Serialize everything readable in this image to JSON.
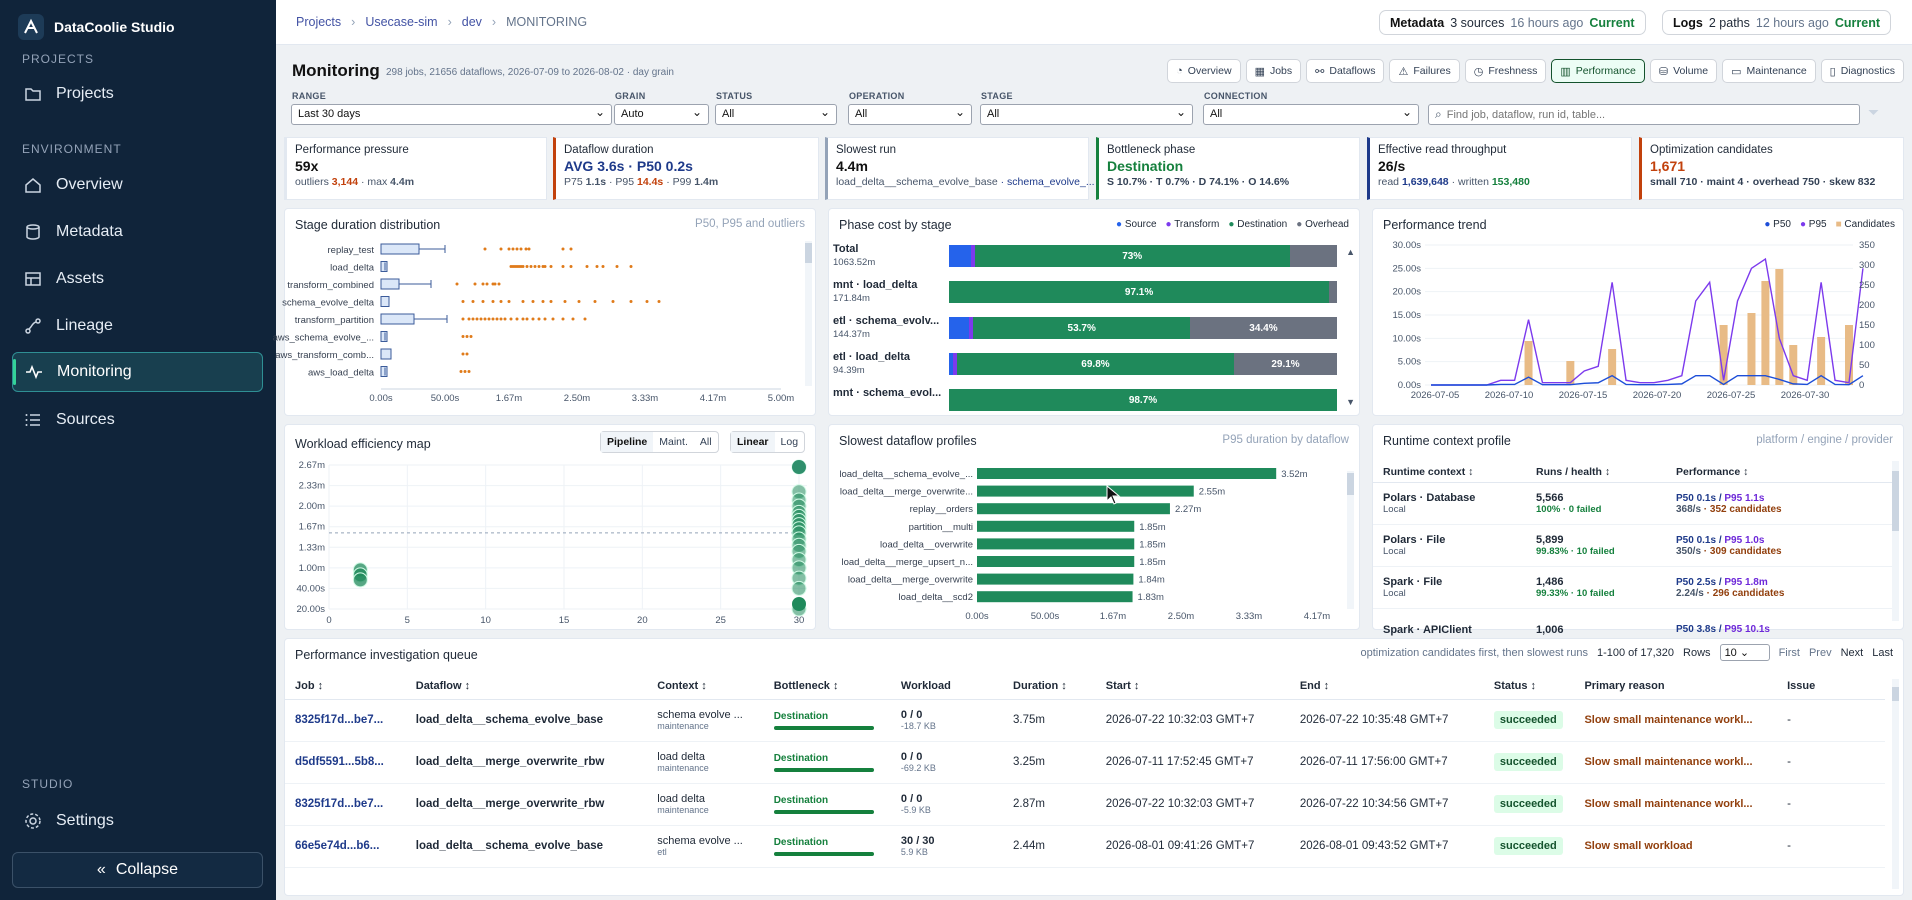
{
  "brand": {
    "name": "DataCoolie Studio"
  },
  "sidebar": {
    "sections": {
      "projects": "PROJECTS",
      "environment": "ENVIRONMENT",
      "studio": "STUDIO"
    },
    "items": [
      {
        "label": "Projects",
        "icon": "folder-icon"
      },
      {
        "label": "Overview",
        "icon": "home-icon"
      },
      {
        "label": "Metadata",
        "icon": "database-icon"
      },
      {
        "label": "Assets",
        "icon": "table-icon"
      },
      {
        "label": "Lineage",
        "icon": "lineage-icon"
      },
      {
        "label": "Monitoring",
        "icon": "pulse-icon"
      },
      {
        "label": "Sources",
        "icon": "list-icon"
      }
    ],
    "settings": "Settings",
    "collapse": "Collapse"
  },
  "breadcrumb": [
    "Projects",
    "Usecase-sim",
    "dev",
    "MONITORING"
  ],
  "status_pills": {
    "metadata": {
      "title": "Metadata",
      "count": "3 sources",
      "age": "16 hours ago",
      "state": "Current"
    },
    "logs": {
      "title": "Logs",
      "count": "2 paths",
      "age": "12 hours ago",
      "state": "Current"
    }
  },
  "page": {
    "title": "Monitoring",
    "meta": "298 jobs, 21656 dataflows, 2026-07-09 to 2026-08-02 · day grain"
  },
  "nav_tabs": [
    "Overview",
    "Jobs",
    "Dataflows",
    "Failures",
    "Freshness",
    "Performance",
    "Volume",
    "Maintenance",
    "Diagnostics"
  ],
  "filters": {
    "range": {
      "label": "RANGE",
      "value": "Last 30 days"
    },
    "grain": {
      "label": "GRAIN",
      "value": "Auto"
    },
    "status": {
      "label": "STATUS",
      "value": "All"
    },
    "operation": {
      "label": "OPERATION",
      "value": "All"
    },
    "stage": {
      "label": "STAGE",
      "value": "All"
    },
    "connection": {
      "label": "CONNECTION",
      "value": "All"
    },
    "search_placeholder": "Find job, dataflow, run id, table..."
  },
  "kpis": [
    {
      "label": "Performance pressure",
      "value": "59x",
      "sub_a": "outliers",
      "sub_b": "3,144",
      "sub_c": "· max",
      "sub_d": "4.4m",
      "color": "#c2410c"
    },
    {
      "label": "Dataflow duration",
      "value": "AVG 3.6s · P50 0.2s",
      "sub_a": "P75",
      "sub_b": "1.1s",
      "sub_c": "· P95",
      "sub_d": "14.4s",
      "sub_e": "· P99",
      "sub_f": "1.4m",
      "color": "#1e3a8a"
    },
    {
      "label": "Slowest run",
      "value": "4.4m",
      "sub_a": "load_delta__schema_evolve_base",
      "sub_b": "· schema_evolve_...",
      "color": "#94a3b8"
    },
    {
      "label": "Bottleneck phase",
      "value": "Destination",
      "sub_a": "S 10.7% · T 0.7% · D 74.1% · O 14.6%",
      "color": "#15803d"
    },
    {
      "label": "Effective read throughput",
      "value": "26/s",
      "sub_a": "read",
      "sub_b": "1,639,648",
      "sub_c": "· written",
      "sub_d": "153,480",
      "color": "#1e3a8a"
    },
    {
      "label": "Optimization candidates",
      "value": "1,671",
      "sub_a": "small 710 · maint 4 · overhead 750 · skew 832",
      "color": "#c2410c"
    }
  ],
  "stage_dist": {
    "title": "Stage duration distribution",
    "subtitle": "P50, P95 and outliers",
    "stages": [
      "replay_test",
      "load_delta",
      "transform_combined",
      "schema_evolve_delta",
      "transform_partition",
      "aws_schema_evolve_...",
      "aws_transform_comb...",
      "aws_load_delta"
    ],
    "xticks": [
      "0.00s",
      "50.00s",
      "1.67m",
      "2.50m",
      "3.33m",
      "4.17m",
      "5.00m"
    ]
  },
  "phase_cost": {
    "title": "Phase cost by stage",
    "legend": [
      "Source",
      "Transform",
      "Destination",
      "Overhead"
    ],
    "rows": [
      {
        "name": "Total",
        "time": "1063.52m",
        "label": "73%",
        "label2": ""
      },
      {
        "name": "mnt · load_delta",
        "time": "171.84m",
        "label": "97.1%",
        "label2": ""
      },
      {
        "name": "etl · schema_evolv...",
        "time": "144.37m",
        "label": "53.7%",
        "label2": "34.4%"
      },
      {
        "name": "etl · load_delta",
        "time": "94.39m",
        "label": "69.8%",
        "label2": "29.1%"
      },
      {
        "name": "mnt · schema_evol...",
        "time": "",
        "label": "98.7%",
        "label2": ""
      }
    ]
  },
  "perf_trend": {
    "title": "Performance trend",
    "legend": [
      "P50",
      "P95",
      "Candidates"
    ],
    "yleft": [
      "30.00s",
      "25.00s",
      "20.00s",
      "15.00s",
      "10.00s",
      "5.00s",
      "0.00s"
    ],
    "yright": [
      "350",
      "300",
      "250",
      "200",
      "150",
      "100",
      "50",
      "0"
    ],
    "xticks": [
      "2026-07-05",
      "2026-07-10",
      "2026-07-15",
      "2026-07-20",
      "2026-07-25",
      "2026-07-30"
    ]
  },
  "efficiency": {
    "title": "Workload efficiency map",
    "seg1": [
      "Pipeline",
      "Maint.",
      "All"
    ],
    "seg2": [
      "Linear",
      "Log"
    ],
    "yticks": [
      "2.67m",
      "2.33m",
      "2.00m",
      "1.67m",
      "1.33m",
      "1.00m",
      "40.00s",
      "20.00s"
    ],
    "xticks": [
      "0",
      "5",
      "10",
      "15",
      "20",
      "25",
      "30"
    ]
  },
  "slowest": {
    "title": "Slowest dataflow profiles",
    "subtitle": "P95 duration by dataflow",
    "rows": [
      {
        "name": "load_delta__schema_evolve_...",
        "value": "3.52m",
        "minutes": 3.52
      },
      {
        "name": "load_delta__merge_overwrite...",
        "value": "2.55m",
        "minutes": 2.55
      },
      {
        "name": "replay__orders",
        "value": "2.27m",
        "minutes": 2.27
      },
      {
        "name": "partition__multi",
        "value": "1.85m",
        "minutes": 1.85
      },
      {
        "name": "load_delta__overwrite",
        "value": "1.85m",
        "minutes": 1.85
      },
      {
        "name": "load_delta__merge_upsert_n...",
        "value": "1.85m",
        "minutes": 1.85
      },
      {
        "name": "load_delta__merge_overwrite",
        "value": "1.84m",
        "minutes": 1.84
      },
      {
        "name": "load_delta__scd2",
        "value": "1.83m",
        "minutes": 1.83
      }
    ],
    "xticks": [
      "0.00s",
      "50.00s",
      "1.67m",
      "2.50m",
      "3.33m",
      "4.17m"
    ]
  },
  "runtime": {
    "title": "Runtime context profile",
    "subtitle": "platform / engine / provider",
    "headers": [
      "Runtime context",
      "Runs / health",
      "Performance"
    ],
    "rows": [
      {
        "name": "Polars · Database",
        "sub": "Local",
        "runs": "5,566",
        "health": "100% · 0 failed",
        "p50": "P50 0.1s",
        "p95": "P95 1.1s",
        "rate": "368/s",
        "cand": "352 candidates"
      },
      {
        "name": "Polars · File",
        "sub": "Local",
        "runs": "5,899",
        "health": "99.83% · 10 failed",
        "p50": "P50 0.1s",
        "p95": "P95 1.0s",
        "rate": "350/s",
        "cand": "309 candidates"
      },
      {
        "name": "Spark · File",
        "sub": "Local",
        "runs": "1,486",
        "health": "99.33% · 10 failed",
        "p50": "P50 2.5s",
        "p95": "P95 1.8m",
        "rate": "2.24/s",
        "cand": "296 candidates"
      },
      {
        "name": "Spark · APIClient",
        "sub": "",
        "runs": "1,006",
        "health": "",
        "p50": "P50 3.8s",
        "p95": "P95 10.1s",
        "rate": "",
        "cand": ""
      }
    ]
  },
  "queue": {
    "title": "Performance investigation queue",
    "note": "optimization candidates first, then slowest runs",
    "range": "1-100 of 17,320",
    "rows_label": "Rows",
    "rows_value": "10",
    "pager": [
      "First",
      "Prev",
      "Next",
      "Last"
    ],
    "headers": [
      "Job",
      "Dataflow",
      "Context",
      "Bottleneck",
      "Workload",
      "Duration",
      "Start",
      "End",
      "Status",
      "Primary reason",
      "Issue"
    ],
    "rows": [
      {
        "job": "8325f17d...be7...",
        "dataflow": "load_delta__schema_evolve_base",
        "ctx": "schema evolve ...",
        "ctx2": "maintenance",
        "bn": "Destination",
        "wl": "0 / 0",
        "wl2": "-18.7 KB",
        "dur": "3.75m",
        "start": "2026-07-22 10:32:03 GMT+7",
        "end": "2026-07-22 10:35:48 GMT+7",
        "status": "succeeded",
        "reason": "Slow small maintenance workl...",
        "issue": "-"
      },
      {
        "job": "d5df5591...5b8...",
        "dataflow": "load_delta__merge_overwrite_rbw",
        "ctx": "load delta",
        "ctx2": "maintenance",
        "bn": "Destination",
        "wl": "0 / 0",
        "wl2": "-69.2 KB",
        "dur": "3.25m",
        "start": "2026-07-11 17:52:45 GMT+7",
        "end": "2026-07-11 17:56:00 GMT+7",
        "status": "succeeded",
        "reason": "Slow small maintenance workl...",
        "issue": "-"
      },
      {
        "job": "8325f17d...be7...",
        "dataflow": "load_delta__merge_overwrite_rbw",
        "ctx": "load delta",
        "ctx2": "maintenance",
        "bn": "Destination",
        "wl": "0 / 0",
        "wl2": "-5.9 KB",
        "dur": "2.87m",
        "start": "2026-07-22 10:32:03 GMT+7",
        "end": "2026-07-22 10:34:56 GMT+7",
        "status": "succeeded",
        "reason": "Slow small maintenance workl...",
        "issue": "-"
      },
      {
        "job": "66e5e74d...b6...",
        "dataflow": "load_delta__schema_evolve_base",
        "ctx": "schema evolve ...",
        "ctx2": "etl",
        "bn": "Destination",
        "wl": "30 / 30",
        "wl2": "5.9 KB",
        "dur": "2.44m",
        "start": "2026-08-01 09:41:26 GMT+7",
        "end": "2026-08-01 09:43:52 GMT+7",
        "status": "succeeded",
        "reason": "Slow small workload",
        "issue": "-"
      }
    ]
  },
  "colors": {
    "source": "#2563eb",
    "transform": "#7c3aed",
    "destination": "#1f8a5b",
    "overhead": "#6b7280",
    "p50": "#1d4ed8",
    "p95": "#7c3aed",
    "candidates": "#e8bb86",
    "outlier": "#e07b1a"
  }
}
